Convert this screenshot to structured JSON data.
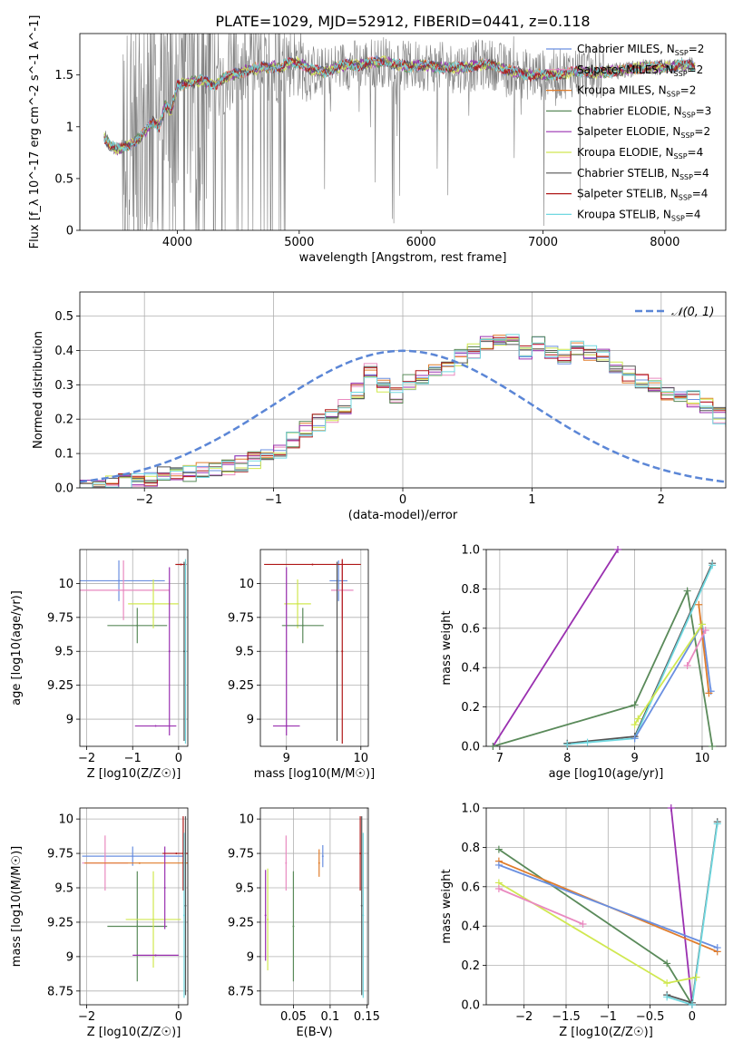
{
  "title": "PLATE=1029, MJD=52912, FIBERID=0441, z=0.118",
  "colors": {
    "chabrier_miles": "#6a8fe0",
    "salpeter_miles": "#e98ac0",
    "kroupa_miles": "#e07d2c",
    "chabrier_elodie": "#5a8a5a",
    "salpeter_elodie": "#9a30b0",
    "kroupa_elodie": "#d0e850",
    "chabrier_stelib": "#555555",
    "salpeter_stelib": "#b01818",
    "kroupa_stelib": "#70d8e0",
    "data": "#808080"
  },
  "chart_data": [
    {
      "type": "line",
      "name": "spectrum",
      "xlabel": "wavelength [Angstrom, rest frame]",
      "ylabel": "Flux [f_λ 10^-17 erg cm^-2 s^-1 A^-1]",
      "xlim": [
        3200,
        8500
      ],
      "ylim": [
        0,
        1.9
      ],
      "xticks": [
        4000,
        5000,
        6000,
        7000,
        8000
      ],
      "yticks": [
        0.0,
        0.5,
        1.0,
        1.5
      ],
      "grid": false,
      "legend_position": "right",
      "legend": [
        {
          "base": "Chabrier MILES, N",
          "n": "2"
        },
        {
          "base": "Salpeter MILES, N",
          "n": "2"
        },
        {
          "base": "Kroupa MILES, N",
          "n": "2"
        },
        {
          "base": "Chabrier ELODIE, N",
          "n": "3"
        },
        {
          "base": "Salpeter ELODIE, N",
          "n": "2"
        },
        {
          "base": "Kroupa ELODIE, N",
          "n": "4"
        },
        {
          "base": "Chabrier STELIB, N",
          "n": "4"
        },
        {
          "base": "Salpeter STELIB, N",
          "n": "4"
        },
        {
          "base": "Kroupa STELIB, N",
          "n": "4"
        }
      ],
      "legend_sub": "SSP",
      "continuum": [
        [
          3400,
          0.9
        ],
        [
          3450,
          0.82
        ],
        [
          3500,
          0.78
        ],
        [
          3550,
          0.8
        ],
        [
          3600,
          0.82
        ],
        [
          3700,
          0.9
        ],
        [
          3800,
          1.05
        ],
        [
          3850,
          1.0
        ],
        [
          3900,
          1.2
        ],
        [
          3950,
          1.15
        ],
        [
          4000,
          1.4
        ],
        [
          4100,
          1.43
        ],
        [
          4200,
          1.45
        ],
        [
          4300,
          1.4
        ],
        [
          4400,
          1.48
        ],
        [
          4500,
          1.52
        ],
        [
          4600,
          1.55
        ],
        [
          4700,
          1.57
        ],
        [
          4800,
          1.58
        ],
        [
          4850,
          1.56
        ],
        [
          4900,
          1.62
        ],
        [
          5000,
          1.62
        ],
        [
          5100,
          1.55
        ],
        [
          5200,
          1.52
        ],
        [
          5300,
          1.57
        ],
        [
          5400,
          1.6
        ],
        [
          5500,
          1.6
        ],
        [
          5600,
          1.62
        ],
        [
          5700,
          1.63
        ],
        [
          5800,
          1.6
        ],
        [
          5900,
          1.58
        ],
        [
          6000,
          1.6
        ],
        [
          6100,
          1.58
        ],
        [
          6200,
          1.57
        ],
        [
          6300,
          1.57
        ],
        [
          6400,
          1.58
        ],
        [
          6500,
          1.6
        ],
        [
          6600,
          1.6
        ],
        [
          6700,
          1.55
        ],
        [
          6800,
          1.52
        ],
        [
          6900,
          1.5
        ],
        [
          7000,
          1.5
        ],
        [
          7100,
          1.5
        ],
        [
          7200,
          1.52
        ],
        [
          7300,
          1.54
        ],
        [
          7400,
          1.52
        ],
        [
          7600,
          1.54
        ],
        [
          7800,
          1.57
        ],
        [
          8000,
          1.58
        ],
        [
          8200,
          1.6
        ],
        [
          8250,
          1.58
        ]
      ]
    },
    {
      "type": "step",
      "name": "residual_distribution",
      "xlabel": "(data-model)/error",
      "ylabel": "Normed distribution",
      "xlim": [
        -2.5,
        2.5
      ],
      "ylim": [
        0,
        0.57
      ],
      "xticks": [
        -2,
        -1,
        0,
        1,
        2
      ],
      "yticks": [
        0.0,
        0.1,
        0.2,
        0.3,
        0.4,
        0.5
      ],
      "grid": true,
      "legend": "𝒩(0, 1)",
      "legend_position": "top-right",
      "bin_width": 0.1,
      "bin_start": -2.5,
      "reference_hist": [
        0.0,
        0.01,
        0.01,
        0.02,
        0.02,
        0.03,
        0.04,
        0.04,
        0.04,
        0.05,
        0.05,
        0.06,
        0.07,
        0.08,
        0.09,
        0.11,
        0.14,
        0.17,
        0.19,
        0.21,
        0.24,
        0.28,
        0.34,
        0.3,
        0.27,
        0.31,
        0.32,
        0.34,
        0.35,
        0.38,
        0.4,
        0.42,
        0.44,
        0.43,
        0.4,
        0.42,
        0.4,
        0.38,
        0.41,
        0.39,
        0.38,
        0.35,
        0.33,
        0.31,
        0.3,
        0.28,
        0.27,
        0.26,
        0.24,
        0.21,
        0.2,
        0.17,
        0.16,
        0.14,
        0.13,
        0.14,
        0.12,
        0.11,
        0.1,
        0.09,
        0.08,
        0.08,
        0.07,
        0.05,
        0.04,
        0.04,
        0.03,
        0.03,
        0.02,
        0.02
      ]
    },
    {
      "type": "errorbar",
      "name": "age_vs_Z",
      "xlabel": "Z [log10(Z/Z☉)]",
      "ylabel": "age  [log10(age/yr)]",
      "xlim": [
        -2.15,
        0.2
      ],
      "ylim": [
        8.8,
        10.25
      ],
      "xticks": [
        -2,
        -1,
        0
      ],
      "yticks": [
        9.0,
        9.25,
        9.5,
        9.75,
        10.0
      ],
      "grid": true,
      "points": [
        {
          "series": "chabrier_miles",
          "x": -1.3,
          "xerr": 1.0,
          "y": 10.02,
          "yerr": 0.15
        },
        {
          "series": "salpeter_miles",
          "x": -1.2,
          "xerr": 1.0,
          "y": 9.95,
          "yerr": 0.22
        },
        {
          "series": "chabrier_elodie",
          "x": -0.9,
          "xerr": 0.65,
          "y": 9.69,
          "yerr": 0.13
        },
        {
          "series": "kroupa_elodie",
          "x": -0.55,
          "xerr": 0.55,
          "y": 9.85,
          "yerr": 0.18
        },
        {
          "series": "salpeter_elodie",
          "x": -0.5,
          "xerr": 0.45,
          "y": 8.95,
          "yerr": 0.0
        },
        {
          "series": "salpeter_elodie",
          "x": -0.2,
          "xerr": 0.0,
          "y": 9.5,
          "yerr": 0.62
        },
        {
          "series": "salpeter_stelib",
          "x": 0.05,
          "xerr": 0.12,
          "y": 10.14,
          "yerr": 0.0
        },
        {
          "series": "kroupa_stelib",
          "x": 0.15,
          "xerr": 0.0,
          "y": 9.5,
          "yerr": 0.68
        },
        {
          "series": "chabrier_stelib",
          "x": 0.12,
          "xerr": 0.0,
          "y": 9.5,
          "yerr": 0.66
        }
      ]
    },
    {
      "type": "errorbar",
      "name": "age_vs_mass",
      "xlabel": "mass [log10(M/M☉)]",
      "ylabel": "",
      "xlim": [
        8.65,
        10.1
      ],
      "ylim": [
        8.8,
        10.25
      ],
      "xticks": [
        9,
        10
      ],
      "yticks": [
        9.0,
        9.25,
        9.5,
        9.75,
        10.0
      ],
      "grid": true,
      "points": [
        {
          "series": "chabrier_miles",
          "x": 9.7,
          "xerr": 0.12,
          "y": 10.02,
          "yerr": 0.15
        },
        {
          "series": "salpeter_miles",
          "x": 9.75,
          "xerr": 0.15,
          "y": 9.95,
          "yerr": 0.22
        },
        {
          "series": "kroupa_elodie",
          "x": 9.15,
          "xerr": 0.18,
          "y": 9.85,
          "yerr": 0.18
        },
        {
          "series": "chabrier_elodie",
          "x": 9.22,
          "xerr": 0.28,
          "y": 9.69,
          "yerr": 0.13
        },
        {
          "series": "salpeter_elodie",
          "x": 9.0,
          "xerr": 0.18,
          "y": 8.95,
          "yerr": 0.0
        },
        {
          "series": "salpeter_elodie",
          "x": 9.0,
          "xerr": 0.0,
          "y": 9.5,
          "yerr": 0.62
        },
        {
          "series": "salpeter_stelib",
          "x": 9.35,
          "xerr": 0.65,
          "y": 10.14,
          "yerr": 0.0
        },
        {
          "series": "salpeter_stelib",
          "x": 9.75,
          "xerr": 0.0,
          "y": 9.5,
          "yerr": 0.68
        },
        {
          "series": "chabrier_stelib",
          "x": 9.68,
          "xerr": 0.0,
          "y": 9.5,
          "yerr": 0.66
        }
      ]
    },
    {
      "type": "line",
      "name": "mass_weight_vs_age",
      "xlabel": "age  [log10(age/yr)]",
      "ylabel": "mass weight",
      "xlim": [
        6.8,
        10.35
      ],
      "ylim": [
        0,
        1.0
      ],
      "xticks": [
        7,
        8,
        9,
        10
      ],
      "yticks": [
        0.0,
        0.2,
        0.4,
        0.6,
        0.8,
        1.0
      ],
      "grid": true,
      "series": [
        {
          "key": "salpeter_elodie",
          "points": [
            [
              6.9,
              0.0
            ],
            [
              8.75,
              1.0
            ]
          ]
        },
        {
          "key": "chabrier_elodie",
          "points": [
            [
              6.9,
              0.0
            ],
            [
              9.0,
              0.21
            ],
            [
              9.78,
              0.79
            ],
            [
              10.15,
              0.0
            ]
          ]
        },
        {
          "key": "chabrier_stelib",
          "points": [
            [
              8.0,
              0.015
            ],
            [
              9.0,
              0.05
            ],
            [
              10.15,
              0.93
            ]
          ]
        },
        {
          "key": "kroupa_stelib",
          "points": [
            [
              8.0,
              0.01
            ],
            [
              8.3,
              0.02
            ],
            [
              9.0,
              0.04
            ],
            [
              10.15,
              0.92
            ]
          ]
        },
        {
          "key": "chabrier_miles",
          "points": [
            [
              9.0,
              0.04
            ],
            [
              10.0,
              0.62
            ],
            [
              10.13,
              0.28
            ]
          ]
        },
        {
          "key": "kroupa_miles",
          "points": [
            [
              9.95,
              0.72
            ],
            [
              10.1,
              0.27
            ]
          ]
        },
        {
          "key": "kroupa_elodie",
          "points": [
            [
              9.0,
              0.11
            ],
            [
              9.05,
              0.14
            ],
            [
              10.0,
              0.62
            ]
          ]
        },
        {
          "key": "salpeter_miles",
          "points": [
            [
              9.78,
              0.41
            ],
            [
              10.05,
              0.59
            ]
          ]
        }
      ]
    },
    {
      "type": "errorbar",
      "name": "mass_vs_Z",
      "xlabel": "Z [log10(Z/Z☉)]",
      "ylabel": "mass [log10(M/M☉)]",
      "xlim": [
        -2.15,
        0.2
      ],
      "ylim": [
        8.65,
        10.08
      ],
      "xticks": [
        -2,
        0
      ],
      "yticks": [
        8.75,
        9.0,
        9.25,
        9.5,
        9.75,
        10.0
      ],
      "grid": true,
      "points": [
        {
          "series": "chabrier_miles",
          "x": -1.0,
          "xerr": 1.1,
          "y": 9.73,
          "yerr": 0.07
        },
        {
          "series": "salpeter_miles",
          "x": -1.6,
          "xerr": 0.5,
          "y": 9.68,
          "yerr": 0.2
        },
        {
          "series": "kroupa_miles",
          "x": -0.85,
          "xerr": 1.2,
          "y": 9.68,
          "yerr": 0.0
        },
        {
          "series": "chabrier_elodie",
          "x": -0.9,
          "xerr": 0.65,
          "y": 9.22,
          "yerr": 0.4
        },
        {
          "series": "kroupa_elodie",
          "x": -0.55,
          "xerr": 0.6,
          "y": 9.27,
          "yerr": 0.35
        },
        {
          "series": "salpeter_elodie",
          "x": -0.5,
          "xerr": 0.5,
          "y": 9.01,
          "yerr": 0.0
        },
        {
          "series": "salpeter_elodie",
          "x": -0.3,
          "xerr": 0.0,
          "y": 9.5,
          "yerr": 0.3
        },
        {
          "series": "salpeter_stelib",
          "x": -0.05,
          "xerr": 0.3,
          "y": 9.75,
          "yerr": 0.0
        },
        {
          "series": "salpeter_stelib",
          "x": 0.1,
          "xerr": 0.0,
          "y": 9.75,
          "yerr": 0.27
        },
        {
          "series": "chabrier_stelib",
          "x": 0.15,
          "xerr": 0.0,
          "y": 9.37,
          "yerr": 0.65
        },
        {
          "series": "kroupa_stelib",
          "x": 0.12,
          "xerr": 0.0,
          "y": 9.3,
          "yerr": 0.6
        }
      ]
    },
    {
      "type": "errorbar",
      "name": "mass_vs_ebv",
      "xlabel": "E(B-V)",
      "ylabel": "",
      "xlim": [
        0.005,
        0.152
      ],
      "ylim": [
        8.65,
        10.08
      ],
      "xticks": [
        0.05,
        0.1,
        0.15
      ],
      "yticks": [
        8.75,
        9.0,
        9.25,
        9.5,
        9.75,
        10.0
      ],
      "grid": true,
      "points": [
        {
          "series": "salpeter_elodie",
          "x": 0.012,
          "xerr": 0.0,
          "y": 9.3,
          "yerr": 0.33
        },
        {
          "series": "kroupa_elodie",
          "x": 0.015,
          "xerr": 0.0,
          "y": 9.27,
          "yerr": 0.37
        },
        {
          "series": "salpeter_miles",
          "x": 0.04,
          "xerr": 0.0,
          "y": 9.68,
          "yerr": 0.2
        },
        {
          "series": "chabrier_elodie",
          "x": 0.05,
          "xerr": 0.0,
          "y": 9.22,
          "yerr": 0.4
        },
        {
          "series": "kroupa_miles",
          "x": 0.085,
          "xerr": 0.0,
          "y": 9.68,
          "yerr": 0.1
        },
        {
          "series": "chabrier_miles",
          "x": 0.09,
          "xerr": 0.0,
          "y": 9.73,
          "yerr": 0.08
        },
        {
          "series": "salpeter_stelib",
          "x": 0.141,
          "xerr": 0.0,
          "y": 9.75,
          "yerr": 0.27
        },
        {
          "series": "chabrier_stelib",
          "x": 0.143,
          "xerr": 0.0,
          "y": 9.37,
          "yerr": 0.65
        },
        {
          "series": "kroupa_stelib",
          "x": 0.145,
          "xerr": 0.0,
          "y": 9.3,
          "yerr": 0.6
        }
      ]
    },
    {
      "type": "line",
      "name": "mass_weight_vs_Z",
      "xlabel": "Z [log10(Z/Z☉)]",
      "ylabel": "mass weight",
      "xlim": [
        -2.45,
        0.4
      ],
      "ylim": [
        0,
        1.0
      ],
      "xticks": [
        -2.0,
        -1.5,
        -1.0,
        -0.5,
        0.0
      ],
      "yticks": [
        0.0,
        0.2,
        0.4,
        0.6,
        0.8,
        1.0
      ],
      "grid": true,
      "series": [
        {
          "key": "salpeter_elodie",
          "points": [
            [
              -0.25,
              1.0
            ],
            [
              0.0,
              0.0
            ]
          ]
        },
        {
          "key": "chabrier_elodie",
          "points": [
            [
              -2.3,
              0.79
            ],
            [
              -0.3,
              0.21
            ],
            [
              0.0,
              0.0
            ]
          ]
        },
        {
          "key": "kroupa_miles",
          "points": [
            [
              -2.3,
              0.73
            ],
            [
              0.3,
              0.27
            ]
          ]
        },
        {
          "key": "chabrier_miles",
          "points": [
            [
              -2.3,
              0.71
            ],
            [
              0.3,
              0.29
            ]
          ]
        },
        {
          "key": "kroupa_elodie",
          "points": [
            [
              -2.3,
              0.62
            ],
            [
              -0.3,
              0.11
            ],
            [
              0.05,
              0.14
            ]
          ]
        },
        {
          "key": "salpeter_miles",
          "points": [
            [
              -2.3,
              0.59
            ],
            [
              -1.3,
              0.41
            ]
          ]
        },
        {
          "key": "chabrier_stelib",
          "points": [
            [
              -0.3,
              0.05
            ],
            [
              0.0,
              0.01
            ],
            [
              0.3,
              0.93
            ]
          ]
        },
        {
          "key": "kroupa_stelib",
          "points": [
            [
              -0.3,
              0.04
            ],
            [
              0.0,
              0.0
            ],
            [
              0.3,
              0.92
            ]
          ]
        }
      ]
    }
  ]
}
